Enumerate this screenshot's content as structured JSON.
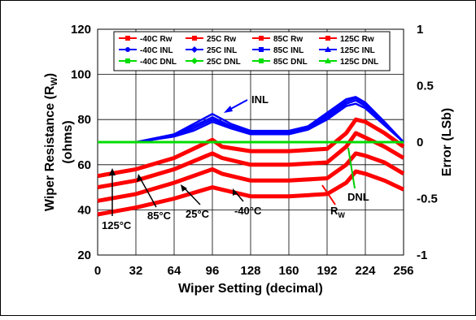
{
  "chart_data": {
    "type": "line",
    "title": "",
    "xlabel": "Wiper Setting (decimal)",
    "ylabel_left": "Wiper Resistance (R",
    "ylabel_left_sub": "W",
    "ylabel_left_end": ")",
    "ylabel_left_units": "(ohms)",
    "ylabel_right": "Error (LSb)",
    "xlim": [
      0,
      256
    ],
    "ylim_left": [
      20,
      120
    ],
    "ylim_right": [
      -1,
      1
    ],
    "x_ticks": [
      "0",
      "32",
      "64",
      "96",
      "128",
      "160",
      "192",
      "224",
      "256"
    ],
    "y_left_ticks": [
      "20",
      "40",
      "60",
      "80",
      "100",
      "120"
    ],
    "y_right_ticks": [
      "-1",
      "-0.5",
      "0",
      "0.5",
      "1"
    ],
    "legend_position": "top",
    "legend": [
      {
        "label": "-40C Rw",
        "color": "#ff0000",
        "marker": "square"
      },
      {
        "label": "25C Rw",
        "color": "#ff0000",
        "marker": "square"
      },
      {
        "label": "85C Rw",
        "color": "#ff0000",
        "marker": "square"
      },
      {
        "label": "125C Rw",
        "color": "#ff0000",
        "marker": "square"
      },
      {
        "label": "-40C INL",
        "color": "#0000ff",
        "marker": "circle"
      },
      {
        "label": "25C INL",
        "color": "#0000ff",
        "marker": "diamond"
      },
      {
        "label": "85C INL",
        "color": "#0000ff",
        "marker": "square"
      },
      {
        "label": "125C INL",
        "color": "#0000ff",
        "marker": "triangle"
      },
      {
        "label": "-40C DNL",
        "color": "#00dd00",
        "marker": "square"
      },
      {
        "label": "25C DNL",
        "color": "#00dd00",
        "marker": "diamond"
      },
      {
        "label": "85C DNL",
        "color": "#00dd00",
        "marker": "square"
      },
      {
        "label": "125C DNL",
        "color": "#00dd00",
        "marker": "triangle"
      }
    ],
    "rw_series": [
      {
        "temp": "-40C",
        "x": [
          0,
          32,
          64,
          96,
          104,
          128,
          160,
          192,
          208,
          216,
          224,
          240,
          256
        ],
        "y": [
          38,
          41,
          45,
          50,
          49,
          46,
          46,
          47,
          52,
          57,
          56,
          53,
          49
        ]
      },
      {
        "temp": "25C",
        "x": [
          0,
          32,
          64,
          96,
          104,
          128,
          160,
          192,
          208,
          216,
          224,
          240,
          256
        ],
        "y": [
          44,
          47,
          52,
          58,
          56,
          53,
          53,
          54,
          60,
          65,
          64,
          61,
          56
        ]
      },
      {
        "temp": "85C",
        "x": [
          0,
          32,
          64,
          96,
          104,
          128,
          160,
          192,
          208,
          216,
          224,
          240,
          256
        ],
        "y": [
          50,
          53,
          58,
          65,
          63,
          60,
          60,
          61,
          68,
          74,
          72,
          68,
          63
        ]
      },
      {
        "temp": "125C",
        "x": [
          0,
          32,
          64,
          96,
          104,
          128,
          160,
          192,
          208,
          216,
          224,
          240,
          256
        ],
        "y": [
          55,
          58,
          63,
          71,
          68,
          66,
          66,
          67,
          74,
          80,
          79,
          74,
          68
        ]
      }
    ],
    "inl_series": [
      {
        "temp": "-40C",
        "x": [
          0,
          32,
          64,
          80,
          96,
          112,
          128,
          160,
          176,
          192,
          208,
          216,
          224,
          240,
          256
        ],
        "y": [
          0,
          0,
          0.05,
          0.1,
          0.18,
          0.12,
          0.07,
          0.07,
          0.11,
          0.2,
          0.32,
          0.34,
          0.3,
          0.15,
          0
        ]
      },
      {
        "temp": "25C",
        "x": [
          0,
          32,
          64,
          80,
          96,
          112,
          128,
          160,
          176,
          192,
          208,
          216,
          224,
          240,
          256
        ],
        "y": [
          0,
          0,
          0.05,
          0.12,
          0.2,
          0.13,
          0.08,
          0.08,
          0.12,
          0.22,
          0.34,
          0.37,
          0.32,
          0.16,
          0
        ]
      },
      {
        "temp": "85C",
        "x": [
          0,
          32,
          64,
          80,
          96,
          112,
          128,
          160,
          176,
          192,
          208,
          216,
          224,
          240,
          256
        ],
        "y": [
          0,
          0,
          0.06,
          0.14,
          0.22,
          0.14,
          0.09,
          0.09,
          0.13,
          0.24,
          0.36,
          0.39,
          0.34,
          0.17,
          0
        ]
      },
      {
        "temp": "125C",
        "x": [
          0,
          32,
          64,
          80,
          96,
          112,
          128,
          160,
          176,
          192,
          208,
          216,
          224,
          240,
          256
        ],
        "y": [
          0,
          0,
          0.07,
          0.16,
          0.25,
          0.16,
          0.1,
          0.1,
          0.14,
          0.26,
          0.38,
          0.4,
          0.35,
          0.18,
          0
        ]
      }
    ],
    "dnl_series": [
      {
        "temp": "all",
        "x": [
          0,
          256
        ],
        "y": [
          0,
          0
        ]
      }
    ],
    "annotations": [
      {
        "text": "INL"
      },
      {
        "text": "DNL"
      },
      {
        "text": "R",
        "sub": "W"
      },
      {
        "text": "125°C"
      },
      {
        "text": "85°C"
      },
      {
        "text": "25°C"
      },
      {
        "text": "-40°C"
      }
    ]
  }
}
